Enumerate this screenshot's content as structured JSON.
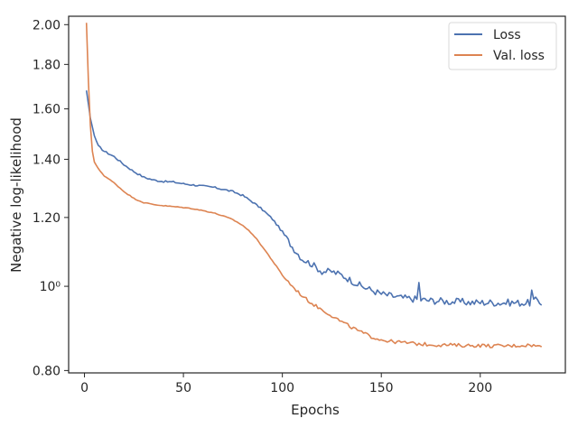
{
  "chart_data": {
    "type": "line",
    "xlabel": "Epochs",
    "ylabel": "Negative log-likelihood",
    "xlim": [
      -8,
      243
    ],
    "ylim": [
      0.795,
      2.045
    ],
    "y_scale": "log",
    "grid": false,
    "legend_position": "top-right",
    "x_ticks": [
      0,
      50,
      100,
      150,
      200
    ],
    "x_tick_labels": [
      "0",
      "50",
      "100",
      "150",
      "200"
    ],
    "y_ticks": [
      0.8,
      1.0,
      1.2,
      1.4,
      1.6,
      1.8,
      2.0
    ],
    "y_tick_labels": [
      "0.80",
      "10⁰",
      "1.20",
      "1.40",
      "1.60",
      "1.80",
      "2.00"
    ],
    "x_range": [
      1,
      231
    ],
    "series": [
      {
        "name": "Loss",
        "color": "#4c72b0",
        "points": [
          [
            1,
            1.68
          ],
          [
            3,
            1.56
          ],
          [
            5,
            1.49
          ],
          [
            7,
            1.45
          ],
          [
            10,
            1.43
          ],
          [
            15,
            1.41
          ],
          [
            20,
            1.38
          ],
          [
            25,
            1.355
          ],
          [
            30,
            1.335
          ],
          [
            35,
            1.325
          ],
          [
            40,
            1.32
          ],
          [
            45,
            1.318
          ],
          [
            50,
            1.312
          ],
          [
            55,
            1.308
          ],
          [
            60,
            1.304
          ],
          [
            65,
            1.3
          ],
          [
            70,
            1.293
          ],
          [
            75,
            1.285
          ],
          [
            80,
            1.272
          ],
          [
            85,
            1.25
          ],
          [
            90,
            1.225
          ],
          [
            95,
            1.195
          ],
          [
            100,
            1.155
          ],
          [
            105,
            1.11
          ],
          [
            110,
            1.075
          ],
          [
            115,
            1.06
          ],
          [
            120,
            1.04
          ],
          [
            125,
            1.04
          ],
          [
            130,
            1.03
          ],
          [
            135,
            1.015
          ],
          [
            140,
            1.0
          ],
          [
            145,
            0.99
          ],
          [
            150,
            0.98
          ],
          [
            155,
            0.975
          ],
          [
            160,
            0.97
          ],
          [
            165,
            0.968
          ],
          [
            170,
            0.965
          ],
          [
            175,
            0.963
          ],
          [
            180,
            0.962
          ],
          [
            185,
            0.96
          ],
          [
            190,
            0.96
          ],
          [
            195,
            0.958
          ],
          [
            200,
            0.958
          ],
          [
            205,
            0.958
          ],
          [
            210,
            0.957
          ],
          [
            215,
            0.958
          ],
          [
            220,
            0.957
          ],
          [
            225,
            0.957
          ],
          [
            229,
            0.965
          ],
          [
            231,
            0.955
          ]
        ],
        "noise": 0.009,
        "spikes": [
          [
            169,
            1.01
          ],
          [
            226,
            0.99
          ]
        ]
      },
      {
        "name": "Val. loss",
        "color": "#dd8452",
        "points": [
          [
            1,
            2.01
          ],
          [
            2,
            1.72
          ],
          [
            3,
            1.53
          ],
          [
            4,
            1.43
          ],
          [
            5,
            1.39
          ],
          [
            7,
            1.365
          ],
          [
            10,
            1.34
          ],
          [
            15,
            1.315
          ],
          [
            20,
            1.285
          ],
          [
            25,
            1.262
          ],
          [
            30,
            1.248
          ],
          [
            35,
            1.242
          ],
          [
            40,
            1.238
          ],
          [
            45,
            1.235
          ],
          [
            50,
            1.232
          ],
          [
            55,
            1.228
          ],
          [
            60,
            1.222
          ],
          [
            65,
            1.215
          ],
          [
            70,
            1.205
          ],
          [
            75,
            1.193
          ],
          [
            80,
            1.175
          ],
          [
            85,
            1.148
          ],
          [
            90,
            1.11
          ],
          [
            95,
            1.07
          ],
          [
            100,
            1.03
          ],
          [
            105,
            1.0
          ],
          [
            110,
            0.975
          ],
          [
            115,
            0.955
          ],
          [
            120,
            0.94
          ],
          [
            125,
            0.925
          ],
          [
            130,
            0.91
          ],
          [
            135,
            0.897
          ],
          [
            140,
            0.885
          ],
          [
            145,
            0.875
          ],
          [
            150,
            0.868
          ],
          [
            155,
            0.864
          ],
          [
            160,
            0.862
          ],
          [
            165,
            0.86
          ],
          [
            170,
            0.858
          ],
          [
            175,
            0.857
          ],
          [
            180,
            0.856
          ],
          [
            185,
            0.856
          ],
          [
            190,
            0.855
          ],
          [
            195,
            0.855
          ],
          [
            200,
            0.855
          ],
          [
            205,
            0.854
          ],
          [
            210,
            0.854
          ],
          [
            215,
            0.854
          ],
          [
            220,
            0.855
          ],
          [
            225,
            0.856
          ],
          [
            231,
            0.852
          ]
        ],
        "noise": 0.004,
        "spikes": []
      }
    ]
  }
}
